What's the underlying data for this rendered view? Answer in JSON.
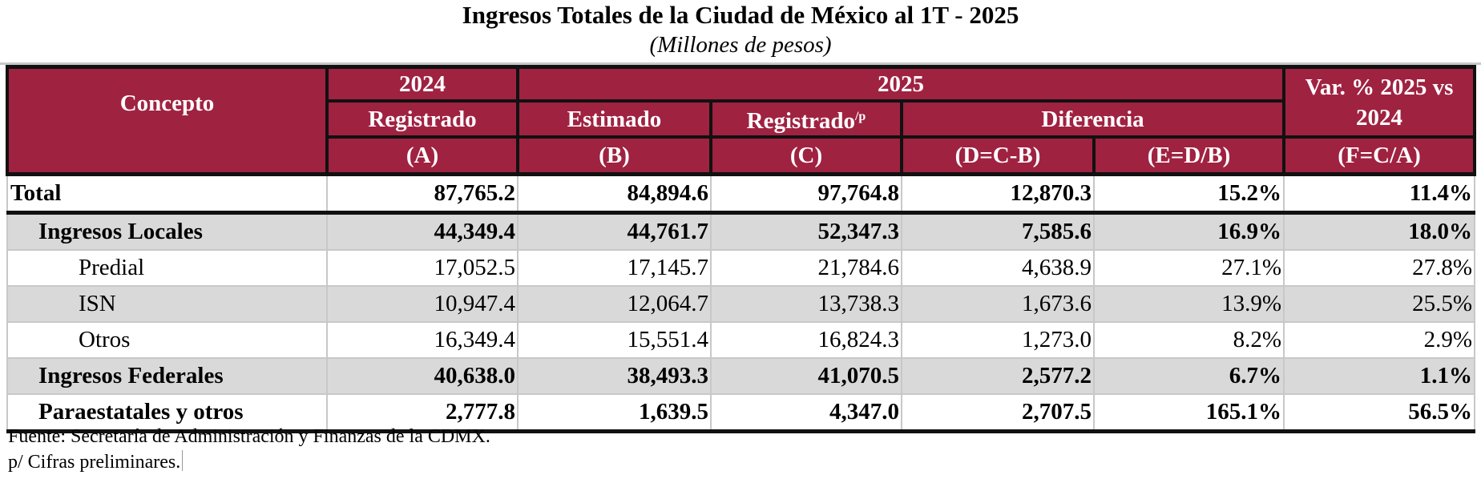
{
  "title": "Ingresos Totales de la Ciudad de México al 1T - 2025",
  "subtitle": "(Millones de pesos)",
  "colors": {
    "header_bg": "#9F2241",
    "stripe_bg": "#D9D9D9"
  },
  "header": {
    "concepto": "Concepto",
    "y2024": "2024",
    "y2025": "2025",
    "var": "Var. % 2025 vs 2024",
    "registrado_2024": "Registrado",
    "estimado": "Estimado",
    "registrado_2025": "Registrado",
    "registrado_2025_sup": "/p",
    "diferencia": "Diferencia",
    "col_a": "(A)",
    "col_b": "(B)",
    "col_c": "(C)",
    "col_d": "(D=C-B)",
    "col_e": "(E=D/B)",
    "col_f": "(F=C/A)"
  },
  "rows": [
    {
      "label": "Total",
      "values": [
        "87,765.2",
        "84,894.6",
        "97,764.8",
        "12,870.3",
        "15.2%",
        "11.4%"
      ]
    },
    {
      "label": "Ingresos Locales",
      "values": [
        "44,349.4",
        "44,761.7",
        "52,347.3",
        "7,585.6",
        "16.9%",
        "18.0%"
      ]
    },
    {
      "label": "Predial",
      "values": [
        "17,052.5",
        "17,145.7",
        "21,784.6",
        "4,638.9",
        "27.1%",
        "27.8%"
      ]
    },
    {
      "label": "ISN",
      "values": [
        "10,947.4",
        "12,064.7",
        "13,738.3",
        "1,673.6",
        "13.9%",
        "25.5%"
      ]
    },
    {
      "label": "Otros",
      "values": [
        "16,349.4",
        "15,551.4",
        "16,824.3",
        "1,273.0",
        "8.2%",
        "2.9%"
      ]
    },
    {
      "label": "Ingresos Federales",
      "values": [
        "40,638.0",
        "38,493.3",
        "41,070.5",
        "2,577.2",
        "6.7%",
        "1.1%"
      ]
    },
    {
      "label": "Paraestatales y otros",
      "values": [
        "2,777.8",
        "1,639.5",
        "4,347.0",
        "2,707.5",
        "165.1%",
        "56.5%"
      ]
    }
  ],
  "footer": {
    "source": "Fuente: Secretaría de Administración y Finanzas de la CDMX.",
    "note": "p/ Cifras preliminares."
  }
}
